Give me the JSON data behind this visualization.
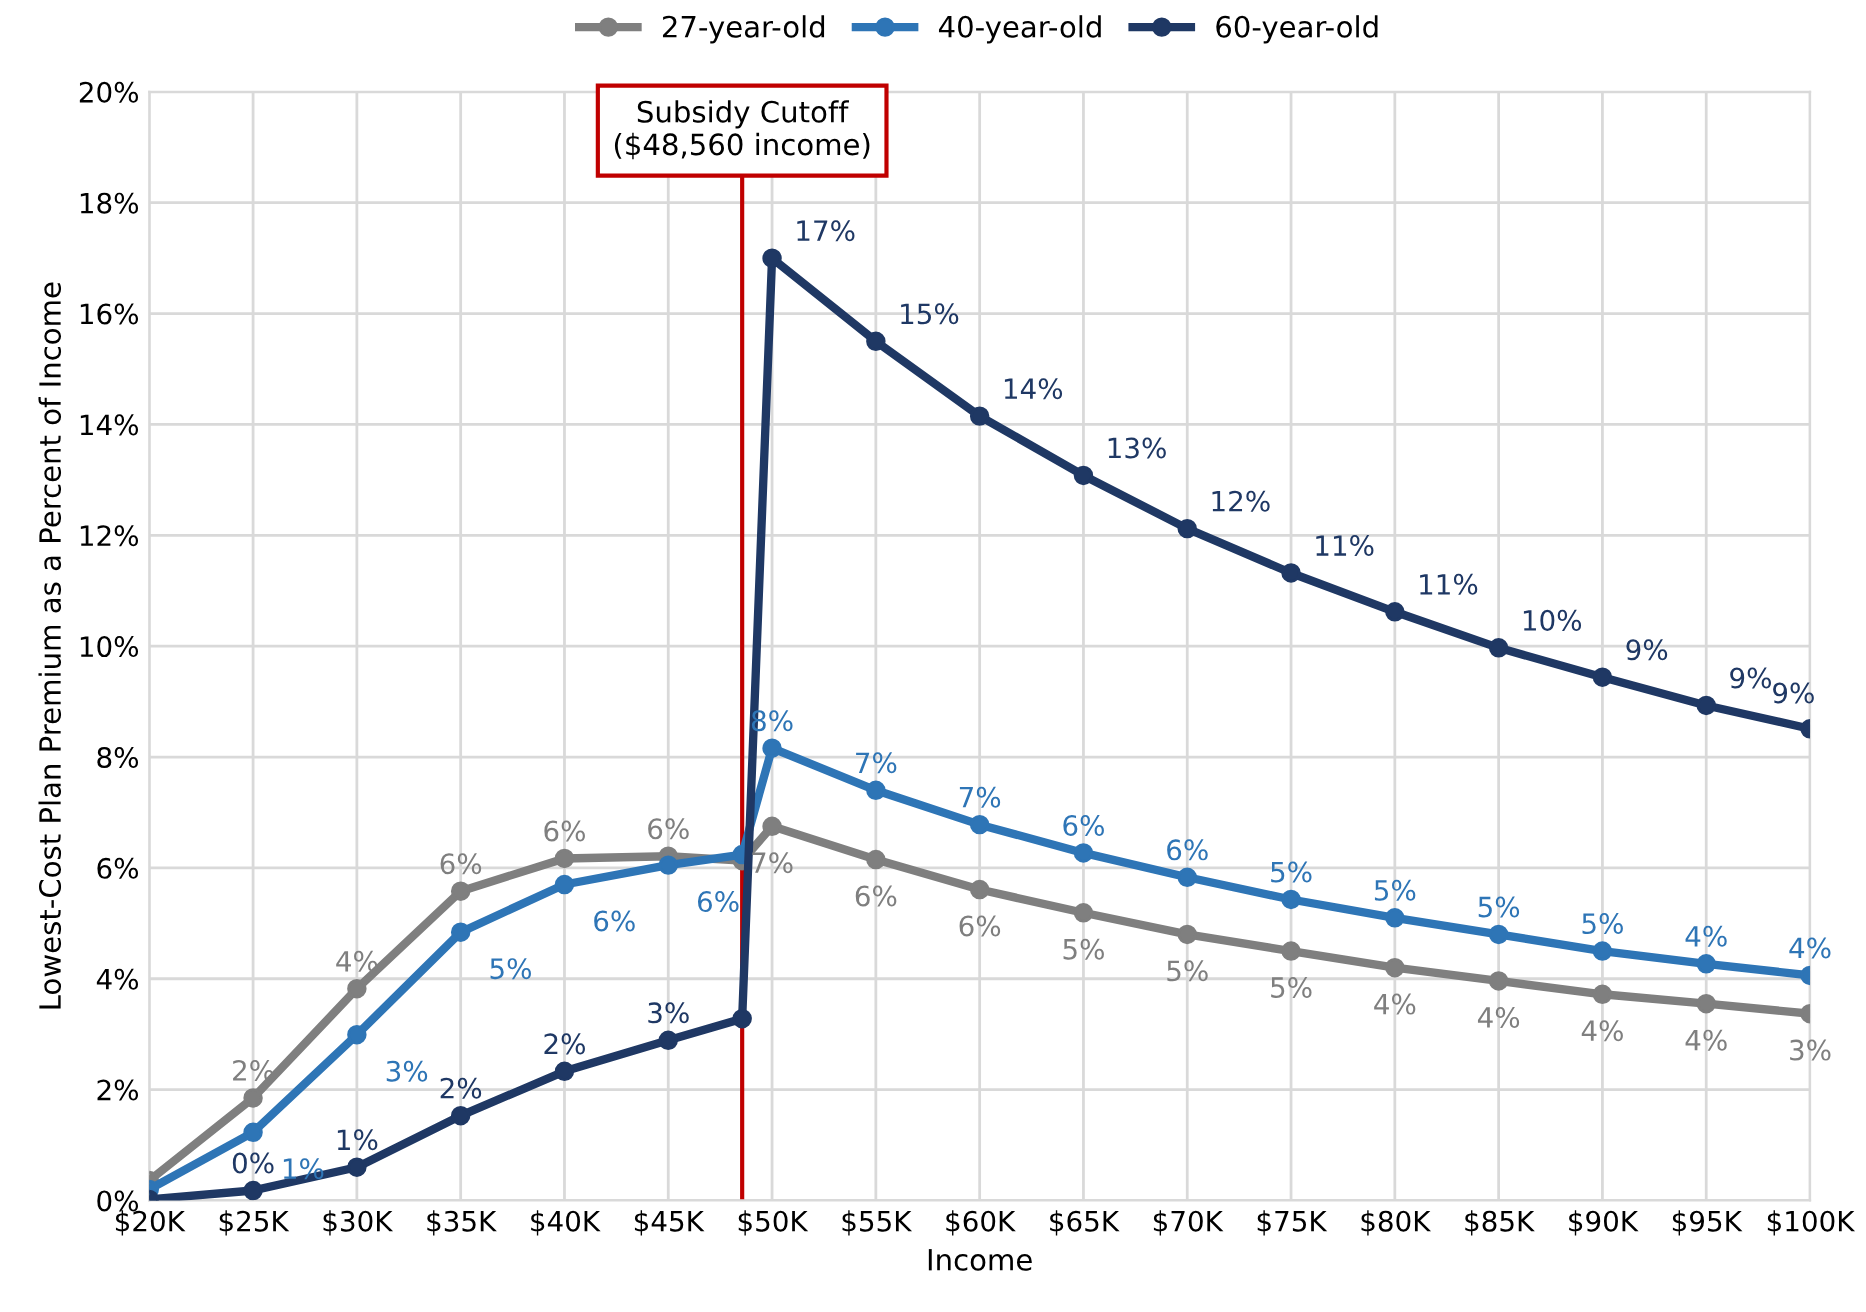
{
  "chart_data": {
    "type": "line",
    "xlabel": "Income",
    "ylabel": "Lowest-Cost Plan Premium as a Percent of Income",
    "x": [
      20,
      25,
      30,
      35,
      40,
      45,
      48.56,
      50,
      55,
      60,
      65,
      70,
      75,
      80,
      85,
      90,
      95,
      100
    ],
    "series": [
      {
        "name": "27-year-old",
        "color": "#7f7f7f",
        "values": [
          0.36,
          1.85,
          3.82,
          5.58,
          6.17,
          6.21,
          6.13,
          6.75,
          6.15,
          5.61,
          5.19,
          4.8,
          4.5,
          4.2,
          3.96,
          3.72,
          3.55,
          3.37
        ],
        "value_labels": [
          null,
          "2%",
          "4%",
          "6%",
          "6%",
          "6%",
          null,
          "7%",
          "6%",
          "6%",
          "5%",
          "5%",
          "5%",
          "4%",
          "4%",
          "4%",
          "4%",
          "3%"
        ]
      },
      {
        "name": "40-year-old",
        "color": "#2e75b6",
        "values": [
          0.2,
          1.23,
          2.99,
          4.84,
          5.7,
          6.05,
          6.24,
          8.16,
          7.4,
          6.78,
          6.27,
          5.83,
          5.43,
          5.1,
          4.8,
          4.5,
          4.27,
          4.06
        ],
        "value_labels": [
          null,
          "1%",
          "3%",
          "5%",
          "6%",
          "6%",
          null,
          "8%",
          "7%",
          "7%",
          "6%",
          "6%",
          "5%",
          "5%",
          "5%",
          "5%",
          "4%",
          "4%"
        ]
      },
      {
        "name": "60-year-old",
        "color": "#1f3864",
        "values": [
          0.02,
          0.18,
          0.6,
          1.53,
          2.33,
          2.89,
          3.28,
          17.0,
          15.5,
          14.15,
          13.08,
          12.12,
          11.32,
          10.62,
          9.97,
          9.44,
          8.93,
          8.51
        ],
        "value_labels": [
          null,
          "0%",
          "1%",
          "2%",
          "2%",
          "3%",
          null,
          "17%",
          "15%",
          "14%",
          "13%",
          "12%",
          "11%",
          "11%",
          "10%",
          "9%",
          "9%",
          "9%"
        ]
      }
    ],
    "xlim": [
      20,
      100
    ],
    "xticks": [
      {
        "value": 20,
        "label": "$20K"
      },
      {
        "value": 25,
        "label": "$25K"
      },
      {
        "value": 30,
        "label": "$30K"
      },
      {
        "value": 35,
        "label": "$35K"
      },
      {
        "value": 40,
        "label": "$40K"
      },
      {
        "value": 45,
        "label": "$45K"
      },
      {
        "value": 50,
        "label": "$50K"
      },
      {
        "value": 55,
        "label": "$55K"
      },
      {
        "value": 60,
        "label": "$60K"
      },
      {
        "value": 65,
        "label": "$65K"
      },
      {
        "value": 70,
        "label": "$70K"
      },
      {
        "value": 75,
        "label": "$75K"
      },
      {
        "value": 80,
        "label": "$80K"
      },
      {
        "value": 85,
        "label": "$85K"
      },
      {
        "value": 90,
        "label": "$90K"
      },
      {
        "value": 95,
        "label": "$95K"
      },
      {
        "value": 100,
        "label": "$100K"
      }
    ],
    "ylim": [
      0,
      20
    ],
    "yticks": [
      {
        "value": 0,
        "label": "0%"
      },
      {
        "value": 2,
        "label": "2%"
      },
      {
        "value": 4,
        "label": "4%"
      },
      {
        "value": 6,
        "label": "6%"
      },
      {
        "value": 8,
        "label": "8%"
      },
      {
        "value": 10,
        "label": "10%"
      },
      {
        "value": 12,
        "label": "12%"
      },
      {
        "value": 14,
        "label": "14%"
      },
      {
        "value": 16,
        "label": "16%"
      },
      {
        "value": 18,
        "label": "18%"
      },
      {
        "value": 20,
        "label": "20%"
      }
    ],
    "ref_lines": [
      {
        "axis": "x",
        "value": 48.56,
        "label": "Subsidy Cutoff\n($48,560 income)",
        "color": "#c00000"
      }
    ],
    "grid": true,
    "legend": "top",
    "marker": "circle",
    "line_style": "solid"
  }
}
